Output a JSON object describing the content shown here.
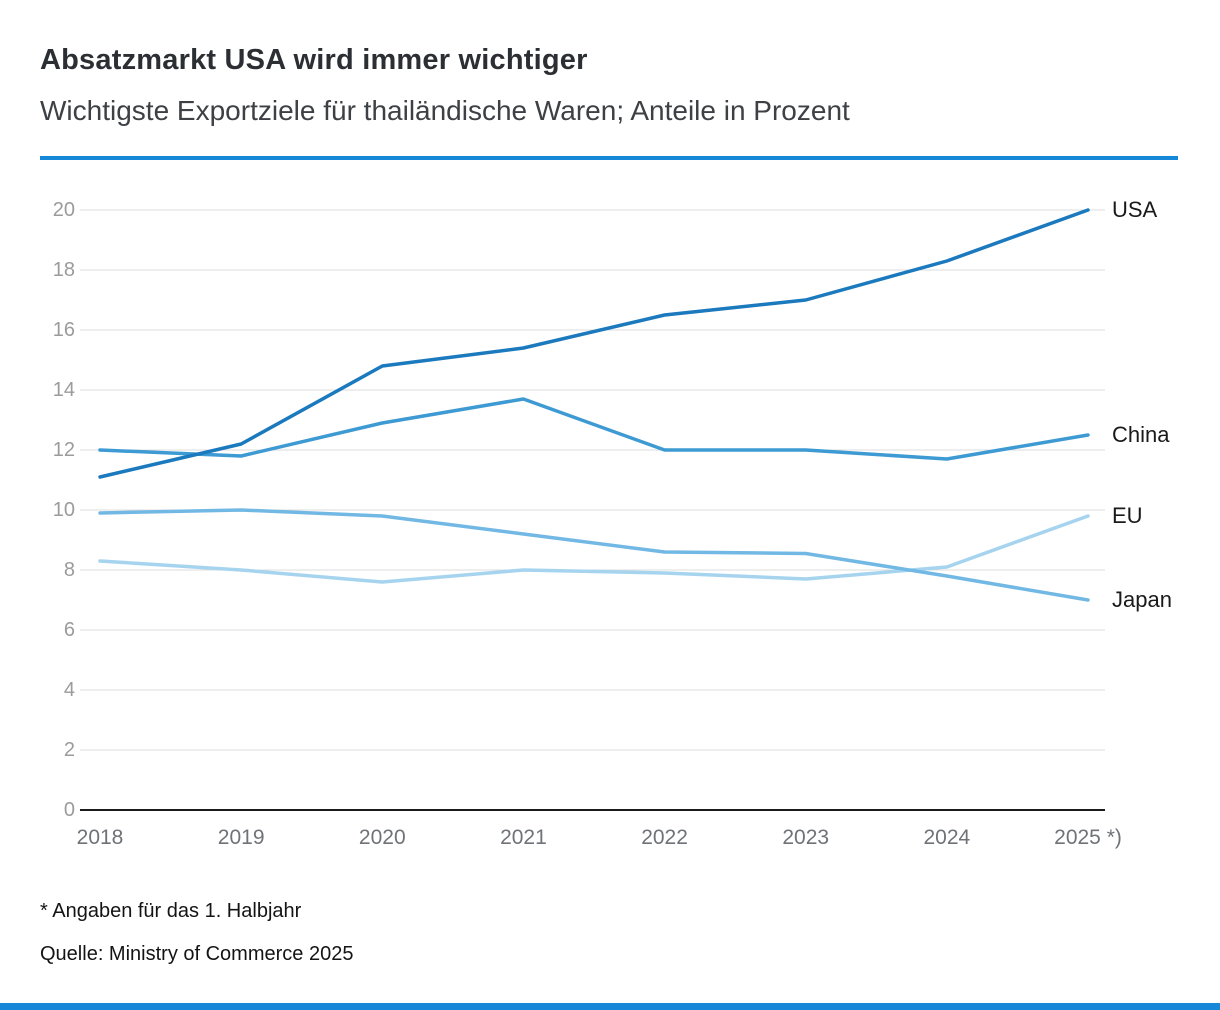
{
  "header": {
    "title": "Absatzmarkt USA wird immer wichtiger",
    "subtitle": "Wichtigste Exportziele für thailändische Waren; Anteile in Prozent"
  },
  "footer": {
    "footnote": "* Angaben für das 1. Halbjahr",
    "source": "Quelle: Ministry of Commerce 2025"
  },
  "colors": {
    "accent_rule": "#1787d8",
    "grid": "#dcdcdc",
    "axis": "#1a1a1a",
    "y_tick_text": "#9b9b9b",
    "x_tick_text": "#6f7378"
  },
  "chart_data": {
    "type": "line",
    "title": "Absatzmarkt USA wird immer wichtiger",
    "subtitle": "Wichtigste Exportziele für thailändische Waren; Anteile in Prozent",
    "categories": [
      "2018",
      "2019",
      "2020",
      "2021",
      "2022",
      "2023",
      "2024",
      "2025 *)"
    ],
    "ylim": [
      0,
      20
    ],
    "yticks": [
      0,
      2,
      4,
      6,
      8,
      10,
      12,
      14,
      16,
      18,
      20
    ],
    "grid": "horizontal",
    "legend_position": "right-end-labels",
    "series": [
      {
        "name": "USA",
        "color": "#1b79be",
        "values": [
          11.1,
          12.2,
          14.8,
          15.4,
          16.5,
          17.0,
          18.3,
          20.0
        ]
      },
      {
        "name": "China",
        "color": "#3e9ad3",
        "values": [
          12.0,
          11.8,
          12.9,
          13.7,
          12.0,
          12.0,
          11.7,
          12.5
        ]
      },
      {
        "name": "Japan",
        "color": "#72b8e4",
        "values": [
          9.9,
          10.0,
          9.8,
          9.2,
          8.6,
          8.55,
          7.8,
          7.0
        ]
      },
      {
        "name": "EU",
        "color": "#a6d4ef",
        "values": [
          8.3,
          8.0,
          7.6,
          8.0,
          7.9,
          7.7,
          8.1,
          9.8
        ]
      }
    ]
  }
}
